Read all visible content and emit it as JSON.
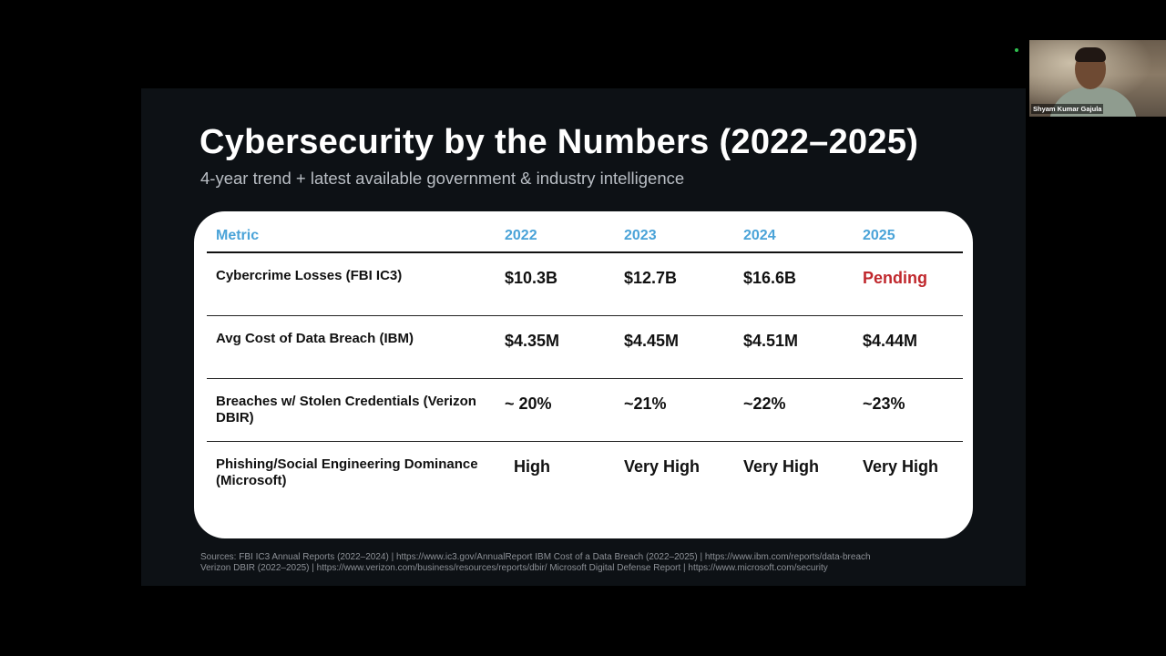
{
  "slide": {
    "title": "Cybersecurity by the Numbers (2022–2025)",
    "subtitle": "4-year trend + latest available government & industry intelligence",
    "table": {
      "headers": [
        "Metric",
        "2022",
        "2023",
        "2024",
        "2025"
      ],
      "rows": [
        {
          "metric": "Cybercrime Losses (FBI IC3)",
          "values": [
            "$10.3B",
            "$12.7B",
            "$16.6B",
            "Pending"
          ]
        },
        {
          "metric": "Avg Cost of Data Breach (IBM)",
          "values": [
            "$4.35M",
            "$4.45M",
            "$4.51M",
            "$4.44M"
          ]
        },
        {
          "metric": "Breaches w/ Stolen Credentials (Verizon DBIR)",
          "values": [
            "~ 20%",
            "~21%",
            "~22%",
            "~23%"
          ]
        },
        {
          "metric": "Phishing/Social Engineering Dominance (Microsoft)",
          "values": [
            "High",
            "Very High",
            "Very High",
            "Very High"
          ]
        }
      ]
    },
    "sources_line1": "Sources: FBI IC3 Annual Reports (2022–2024) | https://www.ic3.gov/AnnualReport  IBM Cost of a Data Breach (2022–2025) | https://www.ibm.com/reports/data-breach",
    "sources_line2": "Verizon DBIR (2022–2025) | https://www.verizon.com/business/resources/reports/dbir/  Microsoft Digital Defense Report | https://www.microsoft.com/security"
  },
  "webcam": {
    "participant_name": "Shyam Kumar Gajula"
  },
  "colors": {
    "header_accent": "#4aa3d8",
    "pending": "#c0282d",
    "slide_bg": "#0d1115",
    "speaking_indicator": "#2fbf4f"
  }
}
